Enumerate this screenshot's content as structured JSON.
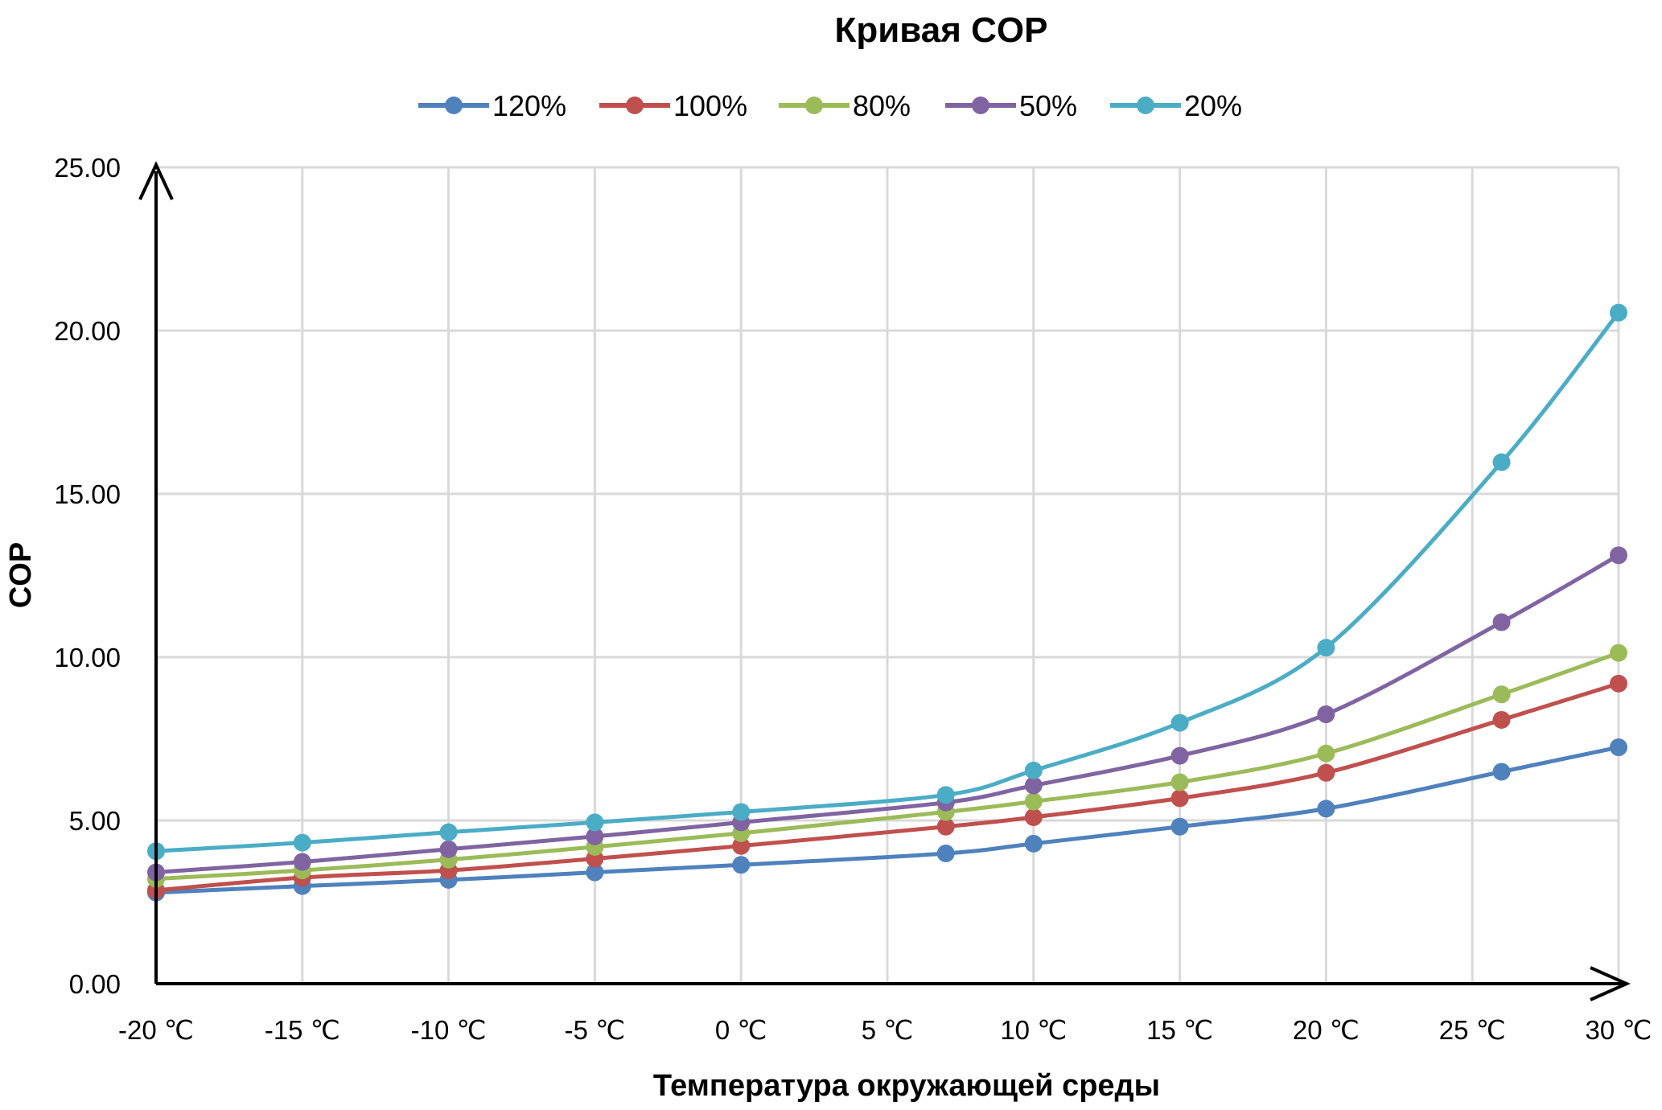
{
  "chart_data": {
    "type": "line",
    "title": "Кривая COP",
    "xlabel": "Температура окружающей среды",
    "ylabel": "COP",
    "xlim": [
      -20,
      30
    ],
    "ylim": [
      0,
      25
    ],
    "grid": true,
    "legend_position": "top",
    "x_ticks": [
      -20,
      -15,
      -10,
      -5,
      0,
      5,
      10,
      15,
      20,
      25,
      30
    ],
    "x_tick_labels": [
      "-20 ℃",
      "-15 ℃",
      "-10 ℃",
      "-5 ℃",
      "0 ℃",
      "5 ℃",
      "10 ℃",
      "15 ℃",
      "20 ℃",
      "25 ℃",
      "30 ℃"
    ],
    "y_ticks": [
      0,
      5,
      10,
      15,
      20,
      25
    ],
    "y_tick_labels": [
      "0.00",
      "5.00",
      "10.00",
      "15.00",
      "20.00",
      "25.00"
    ],
    "x": [
      -20,
      -15,
      -10,
      -5,
      0,
      7,
      10,
      15,
      20,
      26,
      30
    ],
    "series": [
      {
        "name": "120%",
        "color": "#4f81bd",
        "values": [
          2.79,
          2.99,
          3.18,
          3.41,
          3.64,
          3.99,
          4.29,
          4.81,
          5.36,
          6.49,
          7.24
        ]
      },
      {
        "name": "100%",
        "color": "#c0504d",
        "values": [
          2.86,
          3.25,
          3.47,
          3.83,
          4.22,
          4.81,
          5.1,
          5.68,
          6.46,
          8.08,
          9.19
        ]
      },
      {
        "name": "80%",
        "color": "#9bbb59",
        "values": [
          3.21,
          3.47,
          3.8,
          4.19,
          4.61,
          5.26,
          5.58,
          6.17,
          7.05,
          8.86,
          10.13
        ]
      },
      {
        "name": "50%",
        "color": "#8064a2",
        "values": [
          3.41,
          3.73,
          4.12,
          4.51,
          4.94,
          5.55,
          6.07,
          6.98,
          8.25,
          11.07,
          13.12
        ]
      },
      {
        "name": "20%",
        "color": "#4bacc6",
        "values": [
          4.06,
          4.32,
          4.64,
          4.94,
          5.26,
          5.78,
          6.53,
          7.99,
          10.29,
          15.97,
          20.55
        ]
      }
    ]
  }
}
